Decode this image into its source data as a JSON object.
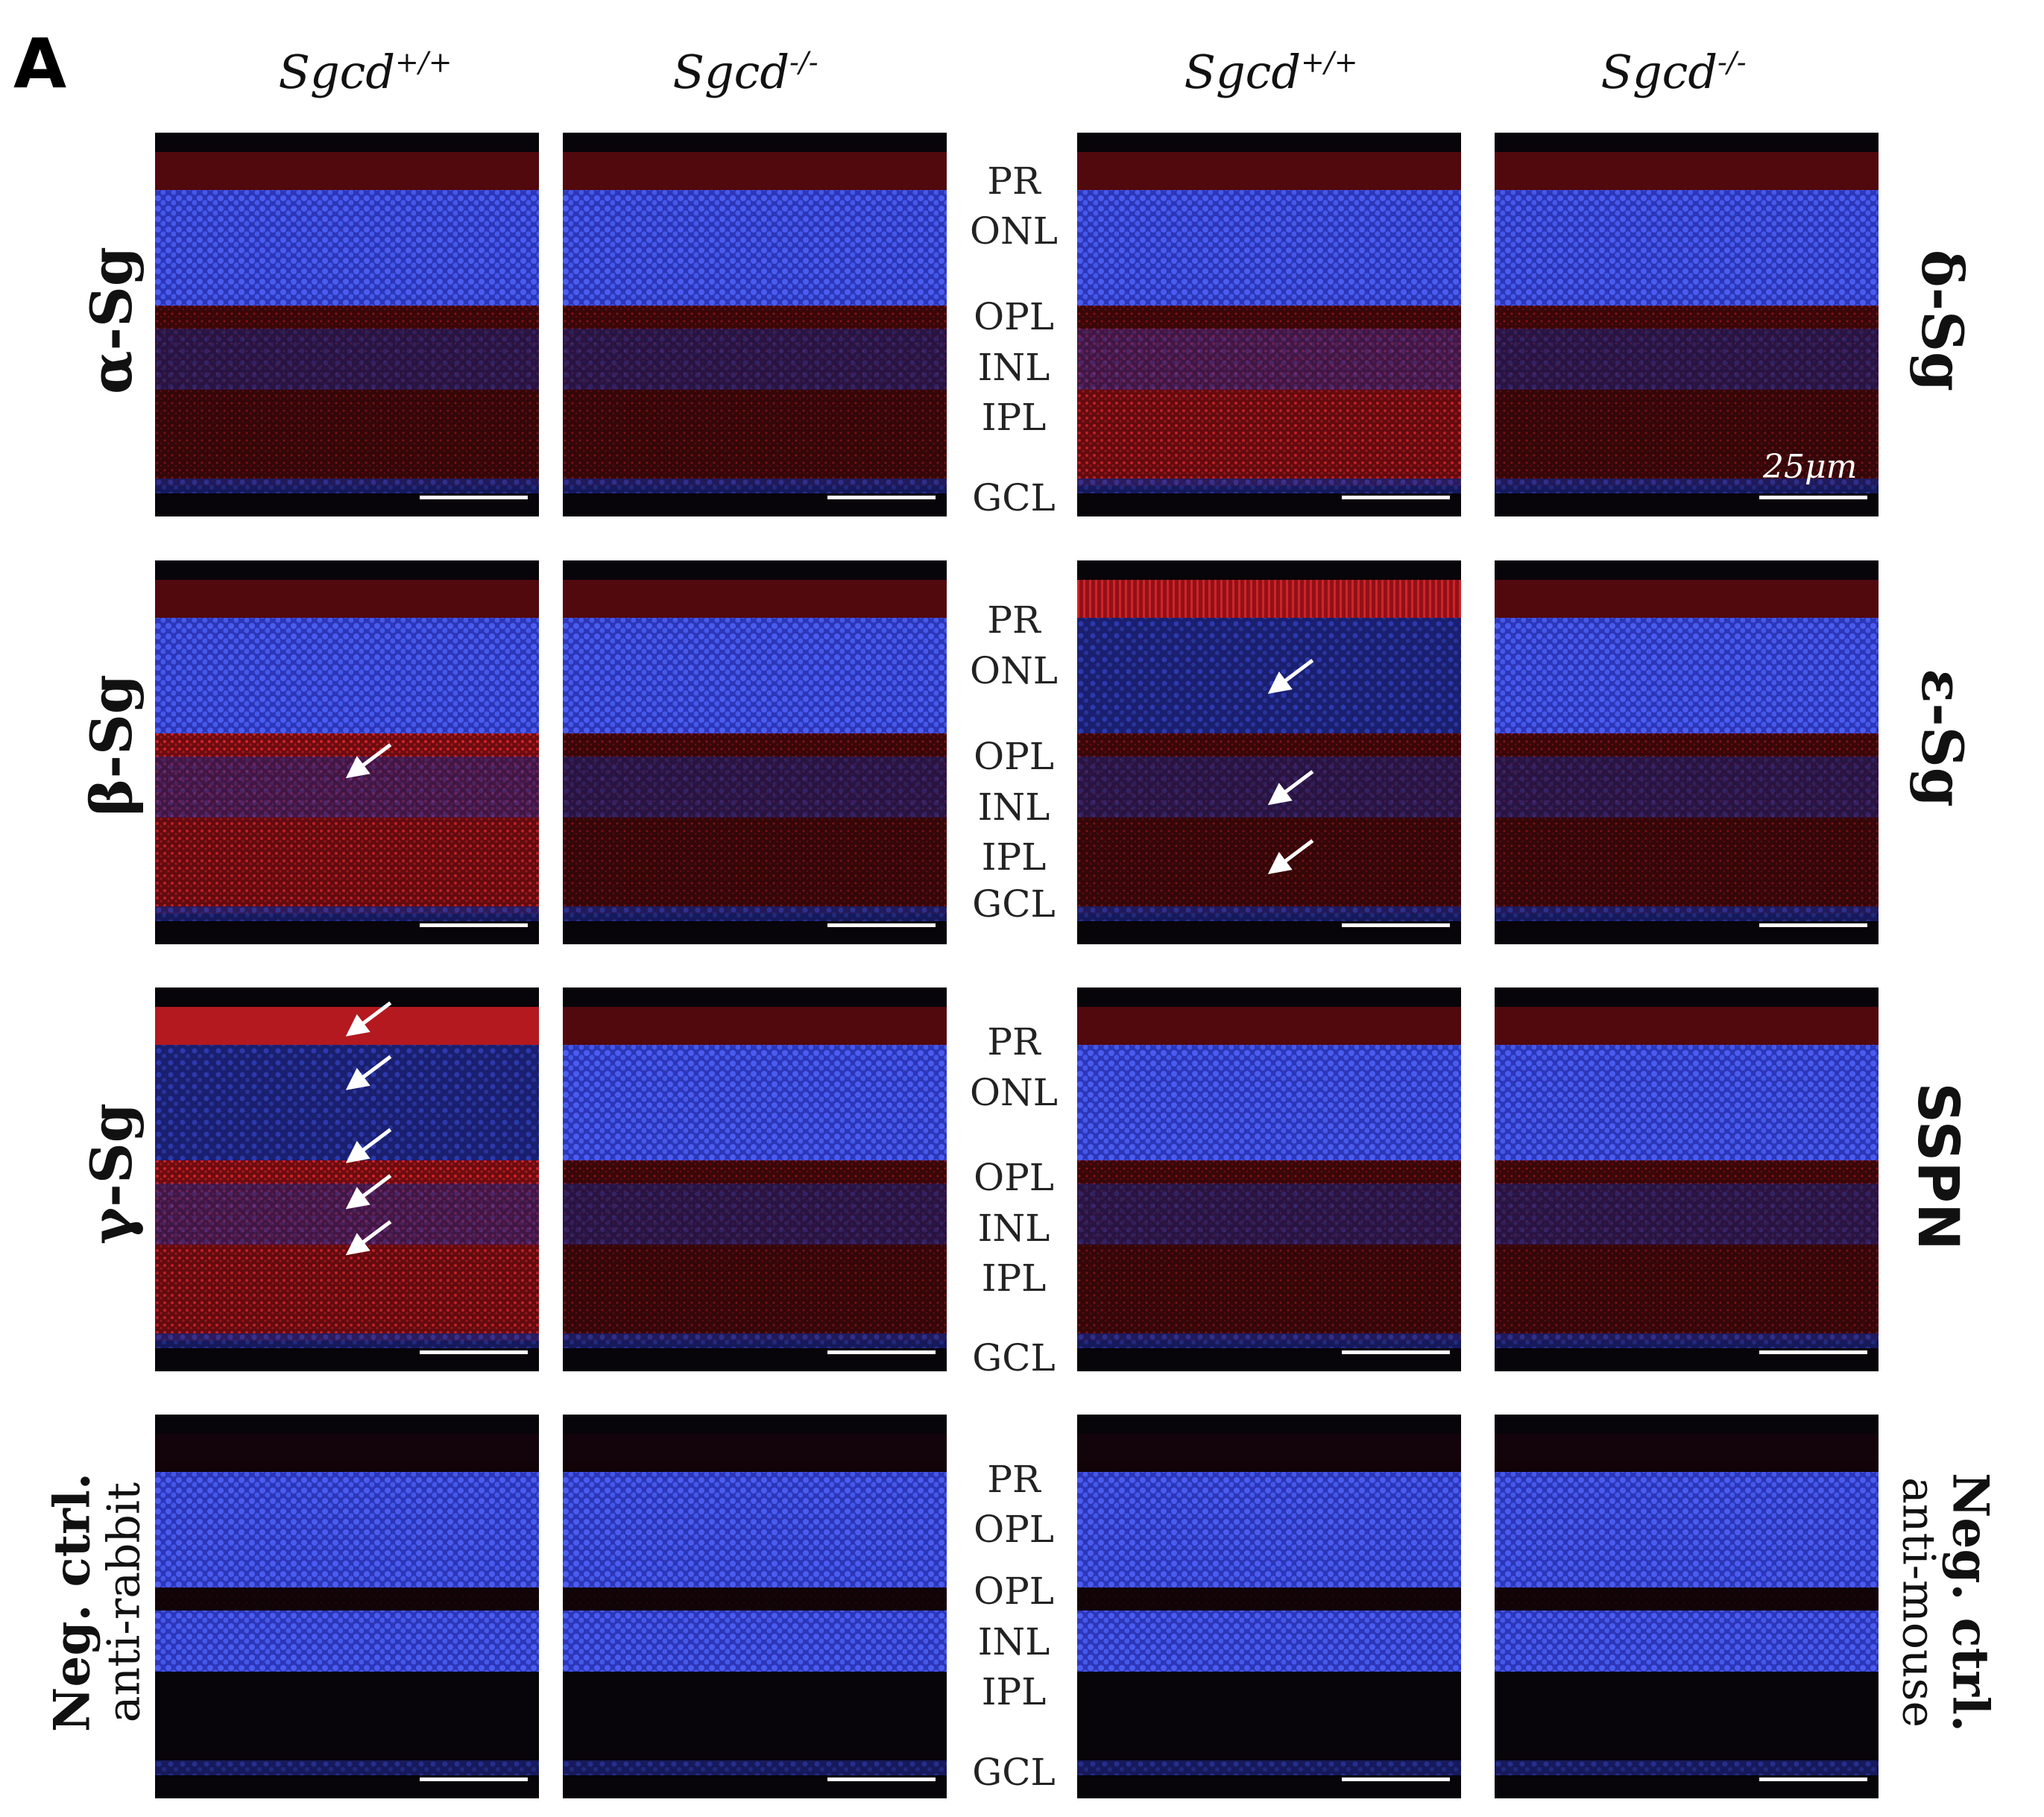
{
  "panel_letter": "A",
  "columns": [
    {
      "gene": "Sgcd",
      "genotype": "+/+"
    },
    {
      "gene": "Sgcd",
      "genotype": "-/-"
    },
    {
      "gene": "Sgcd",
      "genotype": "+/+"
    },
    {
      "gene": "Sgcd",
      "genotype": "-/-"
    }
  ],
  "rows": [
    {
      "left_label": "α-Sg",
      "right_label": "δ-Sg",
      "layers": [
        "PR",
        "ONL",
        "OPL",
        "INL",
        "IPL",
        "GCL"
      ]
    },
    {
      "left_label": "β-Sg",
      "right_label": "ε-Sg",
      "layers": [
        "PR",
        "ONL",
        "OPL",
        "INL",
        "IPL",
        "GCL"
      ]
    },
    {
      "left_label": "γ-Sg",
      "right_label": "SSPN",
      "layers": [
        "PR",
        "ONL",
        "OPL",
        "INL",
        "IPL",
        "GCL"
      ]
    },
    {
      "left_label_line1": "Neg. ctrl.",
      "left_label_line2": "anti-rabbit",
      "right_label_line1": "Neg. ctrl.",
      "right_label_line2": "anti-mouse",
      "layers": [
        "PR",
        "OPL",
        "OPL",
        "INL",
        "IPL",
        "GCL"
      ]
    }
  ],
  "scale_bar_label": "25μm",
  "colors": {
    "nuclei_stain": "#3a4ae6",
    "antibody_stain": "#e02020",
    "background": "#050307"
  }
}
